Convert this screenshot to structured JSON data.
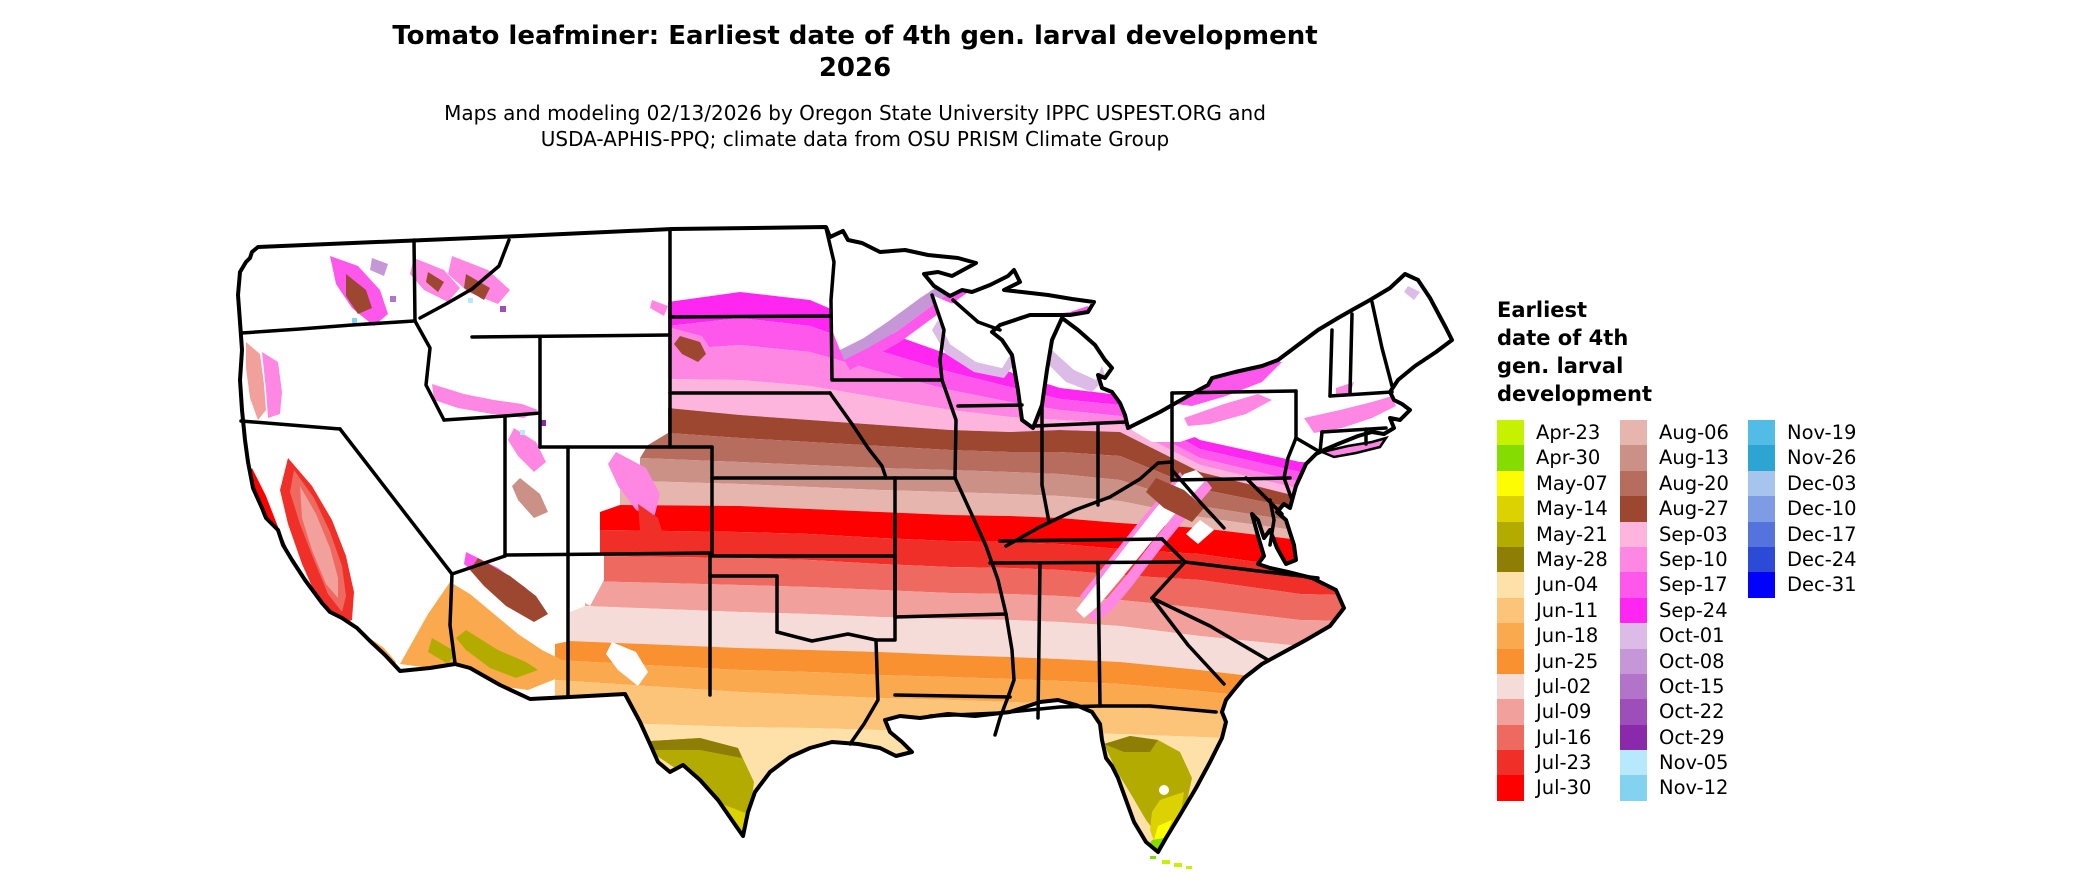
{
  "title": {
    "line1": "Tomato leafminer: Earliest date of 4th gen. larval development",
    "line2": "2026"
  },
  "subtitle": {
    "line1": "Maps and modeling 02/13/2026 by Oregon State University IPPC USPEST.ORG and",
    "line2": "USDA-APHIS-PPQ; climate data from OSU PRISM Climate Group"
  },
  "legend": {
    "title_lines": [
      "Earliest",
      "date of 4th",
      "gen. larval",
      "development"
    ],
    "columns": [
      [
        {
          "label": "Apr-23",
          "color": "#c6f101"
        },
        {
          "label": "Apr-30",
          "color": "#84dc02"
        },
        {
          "label": "May-07",
          "color": "#fdfc03"
        },
        {
          "label": "May-14",
          "color": "#dcd201"
        },
        {
          "label": "May-21",
          "color": "#b4ab01"
        },
        {
          "label": "May-28",
          "color": "#8f7e06"
        },
        {
          "label": "Jun-04",
          "color": "#fde1a9"
        },
        {
          "label": "Jun-11",
          "color": "#fcc478"
        },
        {
          "label": "Jun-18",
          "color": "#fba94f"
        },
        {
          "label": "Jun-25",
          "color": "#f99131"
        },
        {
          "label": "Jul-02",
          "color": "#f6dcd8"
        },
        {
          "label": "Jul-09",
          "color": "#f1a09b"
        },
        {
          "label": "Jul-16",
          "color": "#ee6a60"
        },
        {
          "label": "Jul-23",
          "color": "#f03028"
        },
        {
          "label": "Jul-30",
          "color": "#fe0000"
        }
      ],
      [
        {
          "label": "Aug-06",
          "color": "#e6b6ae"
        },
        {
          "label": "Aug-13",
          "color": "#cb9086"
        },
        {
          "label": "Aug-20",
          "color": "#b66d5d"
        },
        {
          "label": "Aug-27",
          "color": "#9d4731"
        },
        {
          "label": "Sep-03",
          "color": "#feb5dd"
        },
        {
          "label": "Sep-10",
          "color": "#fe87e3"
        },
        {
          "label": "Sep-17",
          "color": "#fe57eb"
        },
        {
          "label": "Sep-24",
          "color": "#ff26f2"
        },
        {
          "label": "Oct-01",
          "color": "#dcbce6"
        },
        {
          "label": "Oct-08",
          "color": "#c697d7"
        },
        {
          "label": "Oct-15",
          "color": "#b274c8"
        },
        {
          "label": "Oct-22",
          "color": "#9e4eb9"
        },
        {
          "label": "Oct-29",
          "color": "#8a29aa"
        },
        {
          "label": "Nov-05",
          "color": "#b6e9fc"
        },
        {
          "label": "Nov-12",
          "color": "#83d3f0"
        }
      ],
      [
        {
          "label": "Nov-19",
          "color": "#51bde7"
        },
        {
          "label": "Nov-26",
          "color": "#2ca5d3"
        },
        {
          "label": "Dec-03",
          "color": "#a7c4ed"
        },
        {
          "label": "Dec-10",
          "color": "#7e9ce5"
        },
        {
          "label": "Dec-17",
          "color": "#5473dd"
        },
        {
          "label": "Dec-24",
          "color": "#2b4ad5"
        },
        {
          "label": "Dec-31",
          "color": "#0202fa"
        }
      ]
    ]
  },
  "map": {
    "region": "Contiguous United States",
    "no_data_color": "#ffffff",
    "border_color": "#000000"
  }
}
